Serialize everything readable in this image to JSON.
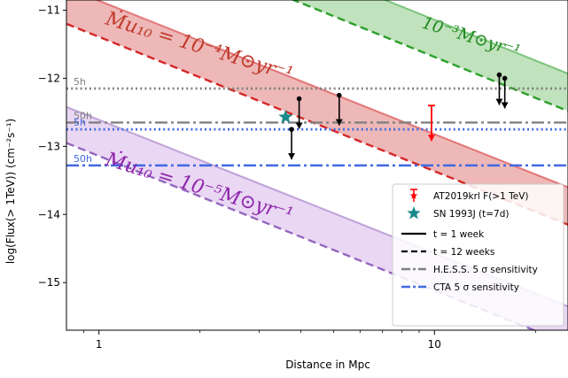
{
  "chart_data": {
    "type": "line",
    "title": "",
    "xlabel": "Distance in Mpc",
    "ylabel": "log(Flux(> 1TeV)) (cm⁻²s⁻¹)",
    "xscale": "log",
    "xlim": [
      0.8,
      25
    ],
    "ylim": [
      -15.7,
      -10.85
    ],
    "x_ticks": [
      {
        "value": 1,
        "label": "1"
      },
      {
        "value": 10,
        "label": "10"
      }
    ],
    "y_ticks": [
      {
        "value": -11,
        "label": "−11"
      },
      {
        "value": -12,
        "label": "−12"
      },
      {
        "value": -13,
        "label": "−13"
      },
      {
        "value": -14,
        "label": "−14"
      },
      {
        "value": -15,
        "label": "−15"
      }
    ],
    "bands": [
      {
        "id": "1e-3",
        "color": "#2ca02c",
        "fill": "#a5d6a0",
        "solid": [
          [
            6.0,
            -10.7
          ],
          [
            25,
            -11.93
          ]
        ],
        "dashed": [
          [
            3.2,
            -10.7
          ],
          [
            25,
            -12.48
          ]
        ]
      },
      {
        "id": "1e-4",
        "color": "#d62728",
        "fill": "#e59a98",
        "solid": [
          [
            0.8,
            -10.67
          ],
          [
            25,
            -13.6
          ]
        ],
        "dashed": [
          [
            0.8,
            -11.2
          ],
          [
            25,
            -14.15
          ]
        ]
      },
      {
        "id": "1e-5",
        "color": "#9467bd",
        "fill": "#e0c6ef",
        "solid": [
          [
            0.8,
            -12.42
          ],
          [
            25,
            -15.35
          ]
        ],
        "dashed": [
          [
            0.8,
            -12.95
          ],
          [
            25,
            -15.9
          ]
        ]
      }
    ],
    "band_annotations": [
      {
        "id": "1e-3",
        "text": "10⁻³M⊙yr⁻¹",
        "color": "#1f8a1f"
      },
      {
        "id": "1e-4",
        "text": "Ṁu₁₀ = 10⁻⁴M⊙yr⁻¹",
        "color": "#c0392b"
      },
      {
        "id": "1e-5",
        "text": "Ṁu₁₀ = 10⁻⁵M⊙yr⁻¹",
        "color": "#8e24aa"
      }
    ],
    "sensitivity_lines": [
      {
        "instrument": "hess",
        "hours": "5h",
        "y": -12.15,
        "color": "#808080",
        "style": "dotted"
      },
      {
        "instrument": "hess",
        "hours": "50h",
        "y": -12.65,
        "color": "#808080",
        "style": "dashdot"
      },
      {
        "instrument": "cta",
        "hours": "5h",
        "y": -12.75,
        "color": "#4169e1",
        "style": "dotted"
      },
      {
        "instrument": "cta",
        "hours": "50h",
        "y": -13.28,
        "color": "#4169e1",
        "style": "dashdot"
      }
    ],
    "upper_limits": [
      {
        "x": 3.75,
        "y": -12.75,
        "color": "#000000"
      },
      {
        "x": 3.95,
        "y": -12.3,
        "color": "#000000"
      },
      {
        "x": 5.2,
        "y": -12.25,
        "color": "#000000"
      },
      {
        "x": 15.6,
        "y": -11.95,
        "color": "#000000"
      },
      {
        "x": 16.2,
        "y": -12.0,
        "color": "#000000"
      }
    ],
    "at2019krl": {
      "x": 9.8,
      "y": -12.4,
      "color": "#ff0000"
    },
    "sn1993j": {
      "x": 3.6,
      "y": -12.57,
      "color": "#1a8a8a"
    },
    "legend": {
      "position": "lower-right",
      "items": [
        {
          "label": "AT2019krl F(>1 TeV)",
          "marker": "red-errorbar",
          "color": "#ff0000"
        },
        {
          "label": "SN 1993J (t=7d)",
          "marker": "star",
          "color": "#1a8a8a"
        },
        {
          "label": "t = 1 week",
          "marker": "solid-line",
          "color": "#000000"
        },
        {
          "label": "t = 12 weeks",
          "marker": "dashed-line",
          "color": "#000000"
        },
        {
          "label": "H.E.S.S. 5 σ sensitivity",
          "marker": "dashdot-line",
          "color": "#808080"
        },
        {
          "label": "CTA 5 σ sensitivity",
          "marker": "dashdot-line",
          "color": "#4169e1"
        }
      ]
    }
  }
}
